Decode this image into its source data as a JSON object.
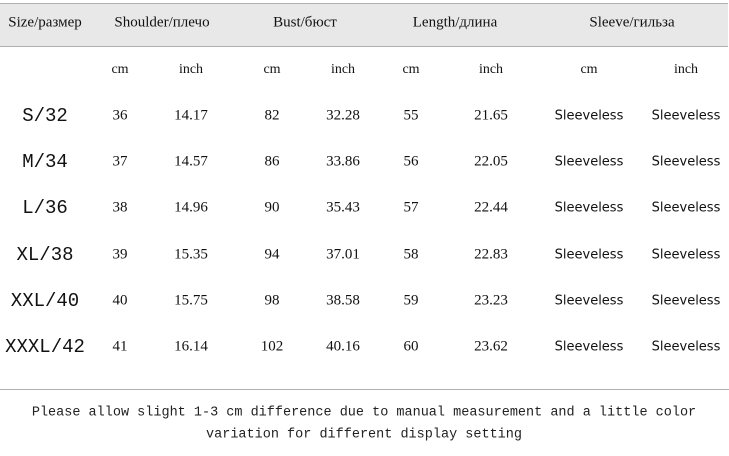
{
  "table": {
    "header": [
      "Size/размер",
      "Shoulder/плечо",
      "Bust/бюст",
      "Length/длина",
      "Sleeve/гильза"
    ],
    "units": [
      "cm",
      "inch",
      "cm",
      "inch",
      "cm",
      "inch",
      "cm",
      "inch"
    ],
    "rows": [
      [
        "S/32",
        "36",
        "14.17",
        "82",
        "32.28",
        "55",
        "21.65",
        "Sleeveless",
        "Sleeveless"
      ],
      [
        "M/34",
        "37",
        "14.57",
        "86",
        "33.86",
        "56",
        "22.05",
        "Sleeveless",
        "Sleeveless"
      ],
      [
        "L/36",
        "38",
        "14.96",
        "90",
        "35.43",
        "57",
        "22.44",
        "Sleeveless",
        "Sleeveless"
      ],
      [
        "XL/38",
        "39",
        "15.35",
        "94",
        "37.01",
        "58",
        "22.83",
        "Sleeveless",
        "Sleeveless"
      ],
      [
        "XXL/40",
        "40",
        "15.75",
        "98",
        "38.58",
        "59",
        "23.23",
        "Sleeveless",
        "Sleeveless"
      ],
      [
        "XXXL/42",
        "41",
        "16.14",
        "102",
        "40.16",
        "60",
        "23.62",
        "Sleeveless",
        "Sleeveless"
      ]
    ]
  },
  "footer": [
    "Please allow slight 1-3 cm difference due to manual measurement and a little color",
    "variation for different display setting"
  ]
}
